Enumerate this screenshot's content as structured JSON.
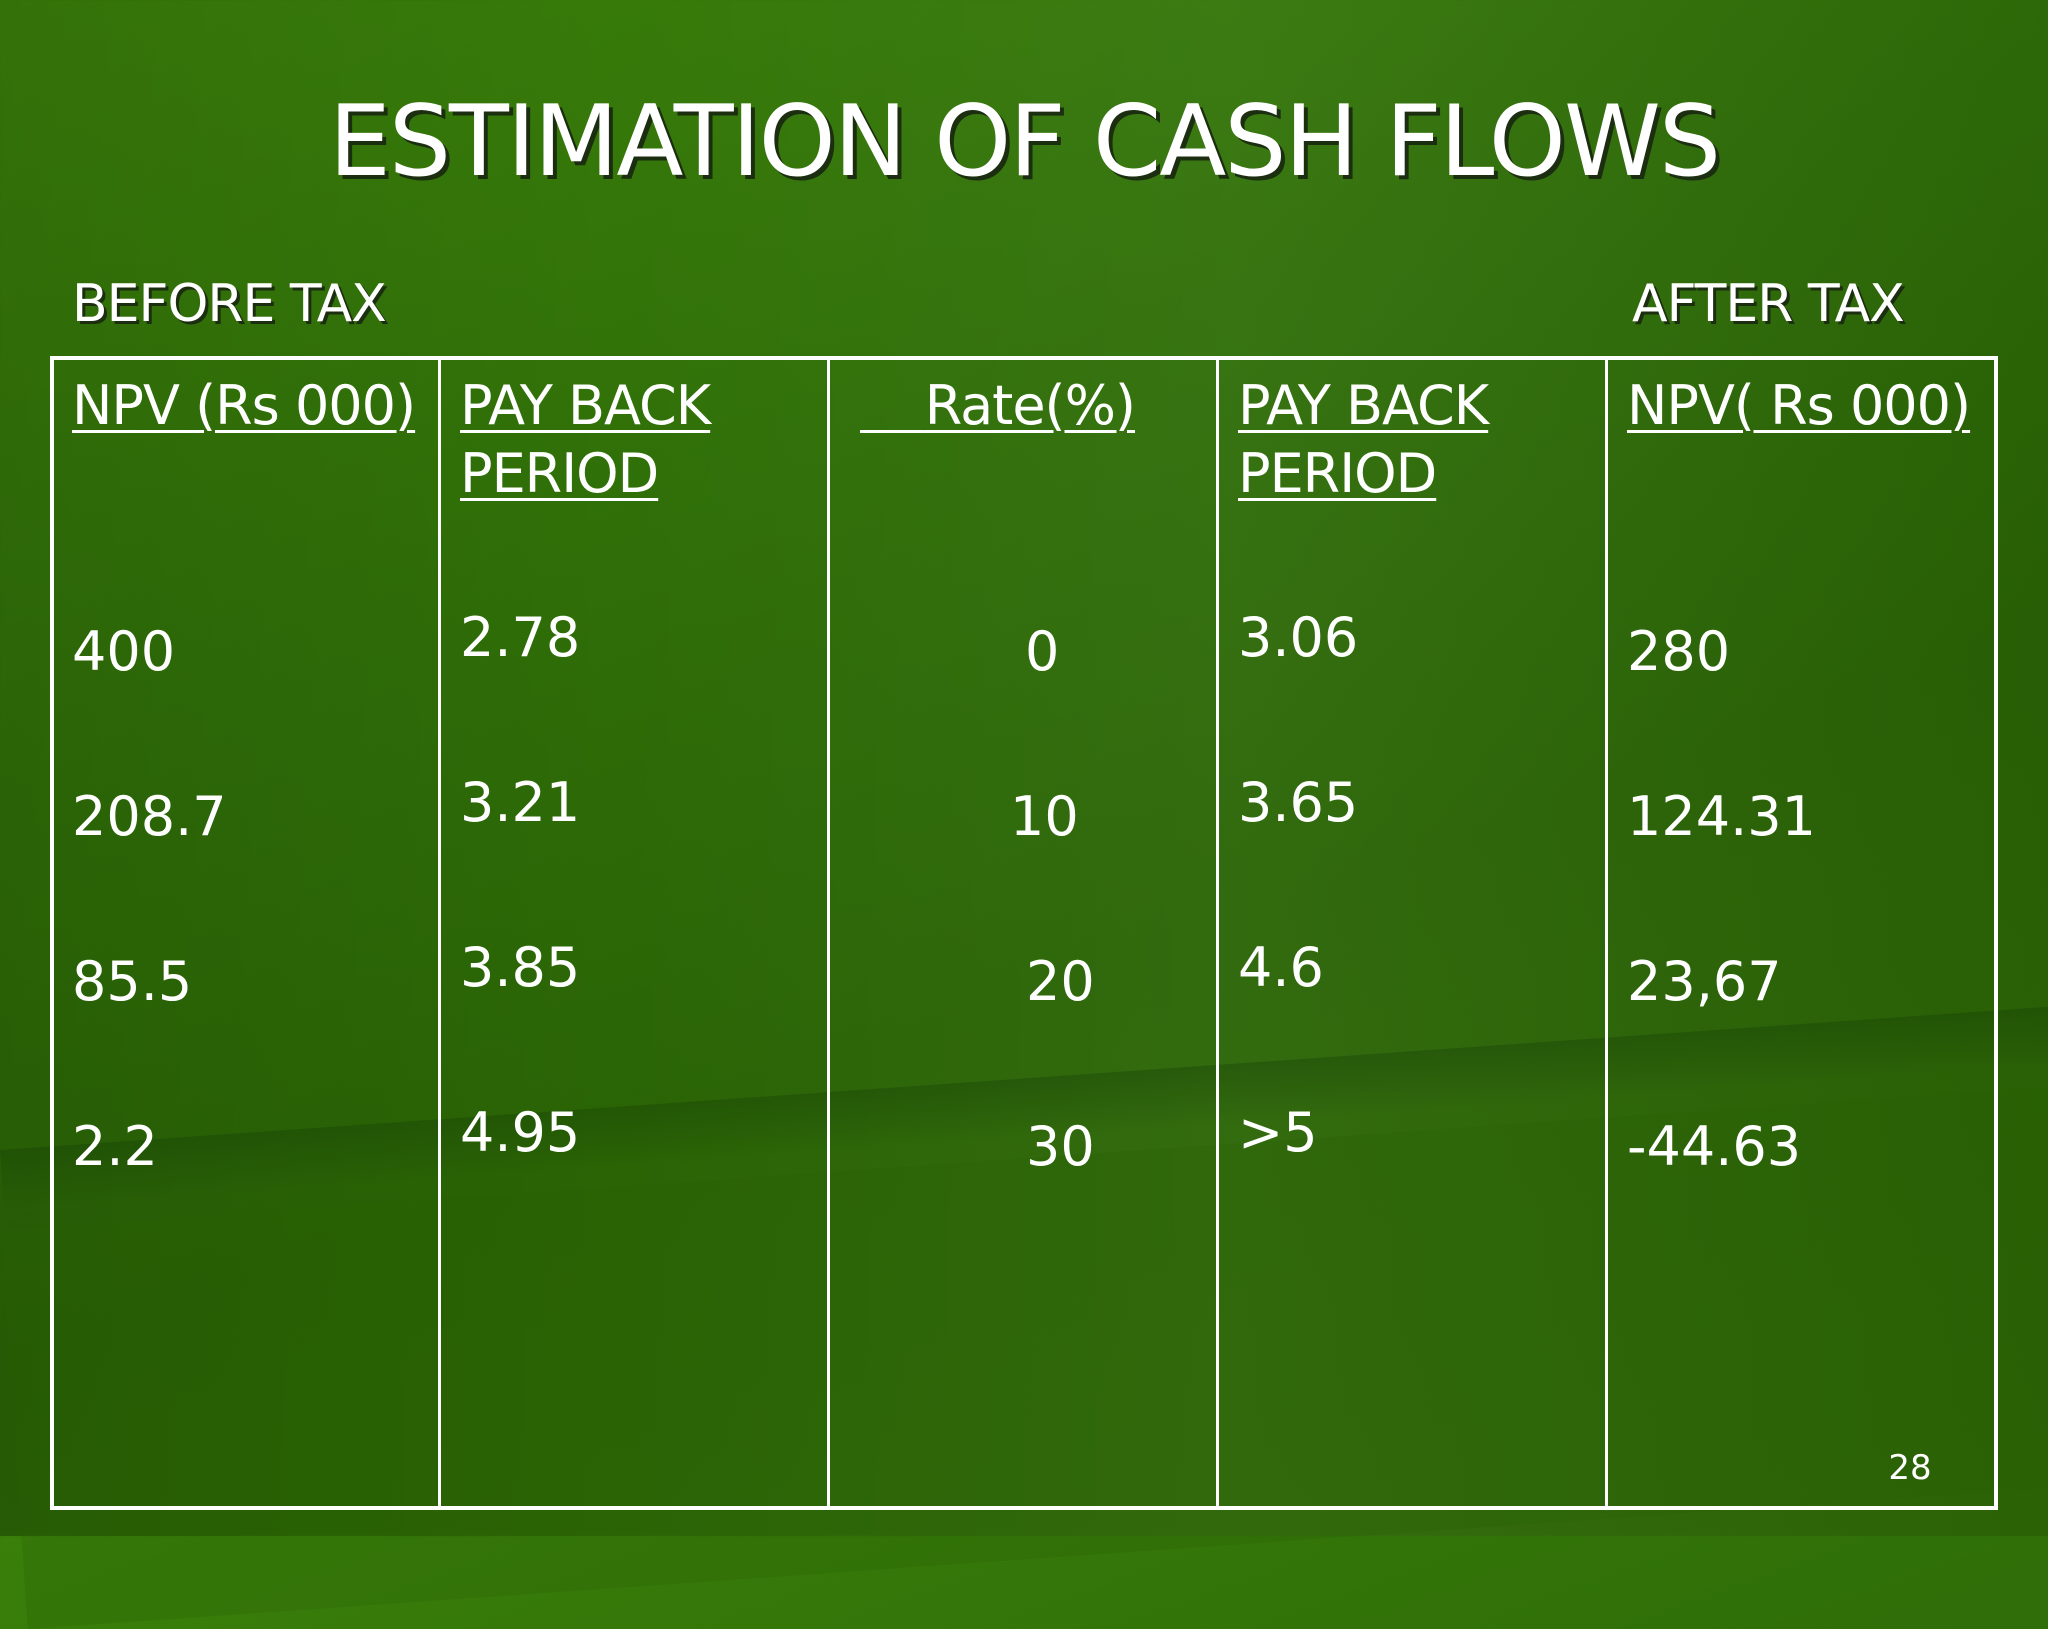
{
  "title": "ESTIMATION OF CASH FLOWS",
  "labels": {
    "before_tax": "BEFORE TAX",
    "after_tax": "AFTER TAX"
  },
  "table": {
    "headers": {
      "npv_before": "NPV (Rs 000)",
      "payback_before_line1": "PAY BACK",
      "payback_before_line2": "PERIOD",
      "rate": "Rate(%)",
      "payback_after_line1": "PAY BACK",
      "payback_after_line2": "PERIOD",
      "npv_after": "NPV( Rs 000)"
    },
    "rows": [
      {
        "npv_before": "400",
        "payback_before": "2.78",
        "rate": "0",
        "payback_after": "3.06",
        "npv_after": "280"
      },
      {
        "npv_before": "208.7",
        "payback_before": "3.21",
        "rate": "10",
        "payback_after": "3.65",
        "npv_after": "124.31"
      },
      {
        "npv_before": "85.5",
        "payback_before": "3.85",
        "rate": "20",
        "payback_after": "4.6",
        "npv_after": "23,67"
      },
      {
        "npv_before": "2.2",
        "payback_before": "4.95",
        "rate": "30",
        "payback_after": ">5",
        "npv_after": "-44.63"
      }
    ]
  },
  "page_number": "28",
  "colors": {
    "background": "#2f6e08",
    "text": "#ffffff",
    "shadow": "#1c2e10"
  }
}
